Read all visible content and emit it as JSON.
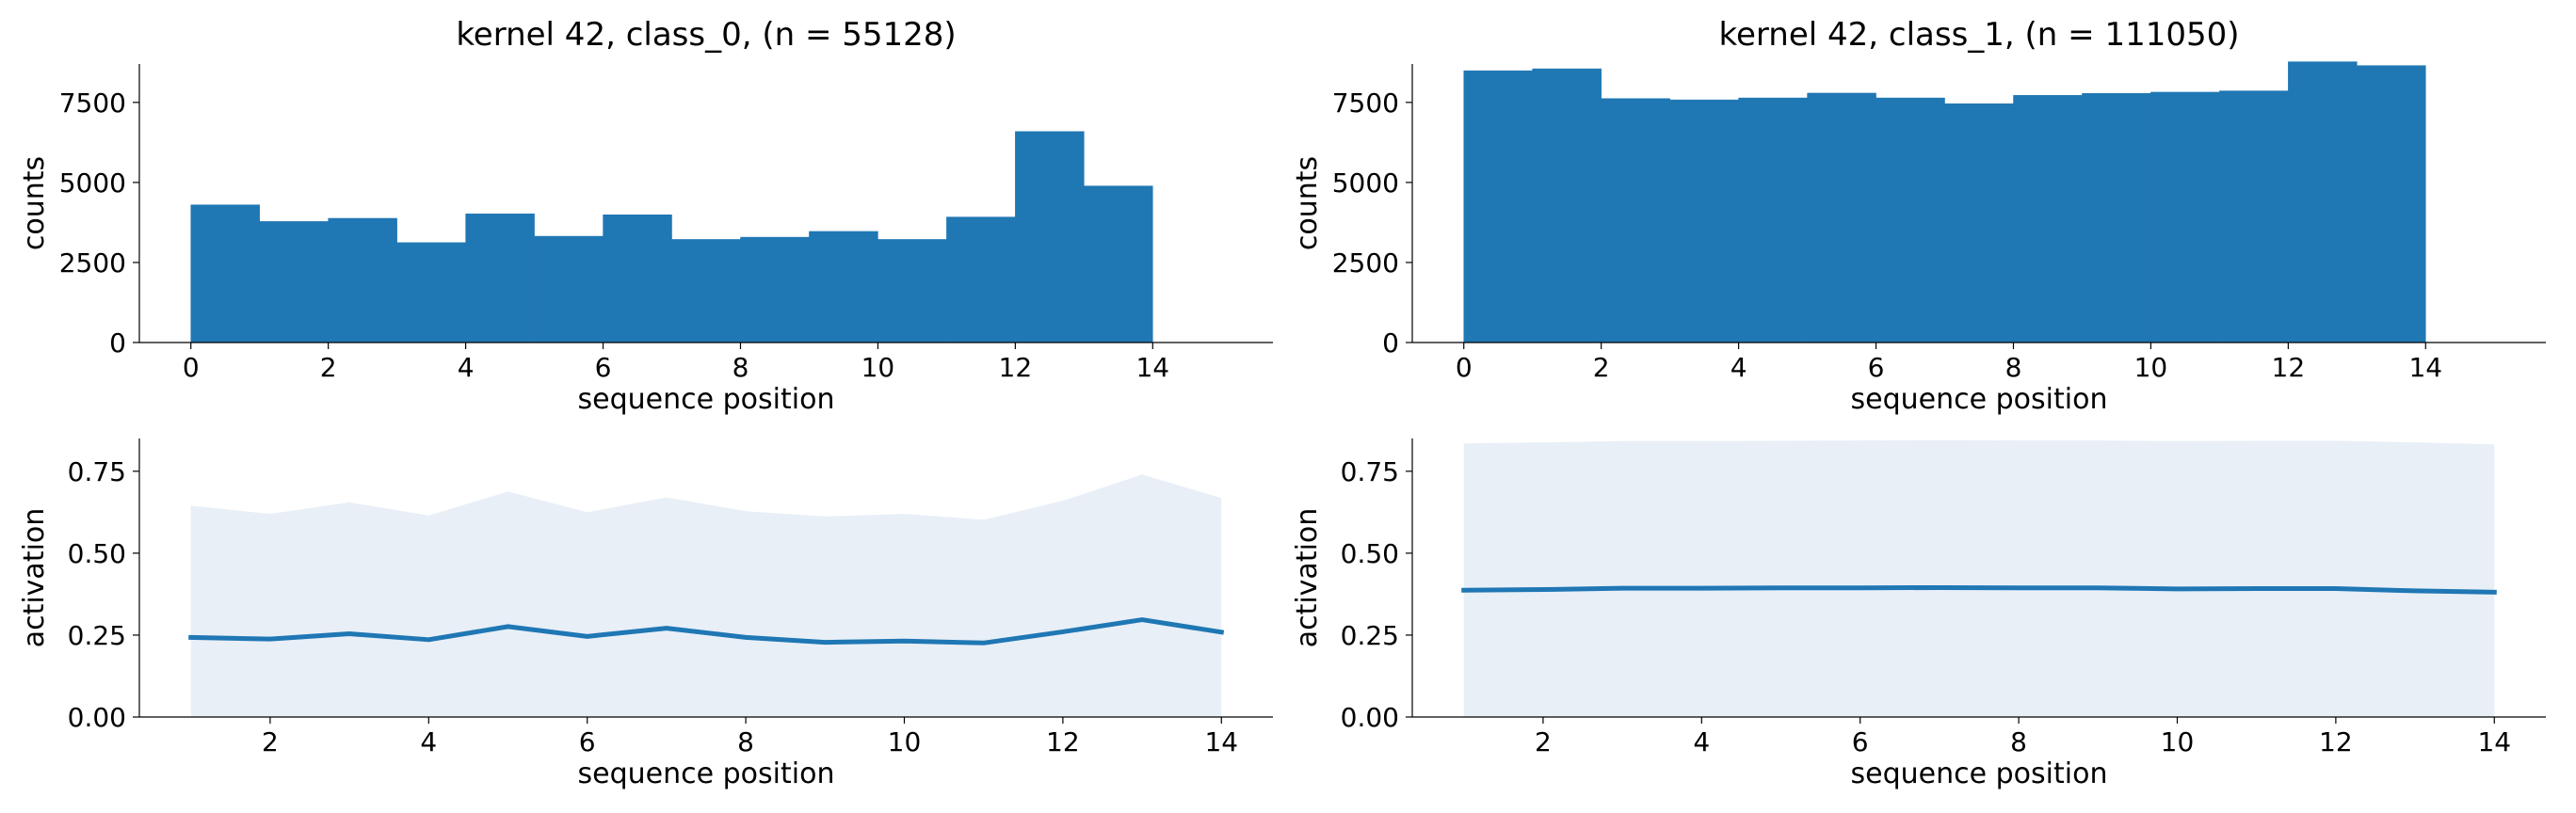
{
  "colors": {
    "series": "#1f77b4",
    "band": "#e8eff7",
    "axis": "#000000"
  },
  "chart_data": [
    {
      "type": "bar",
      "panel": "top-left",
      "title": "kernel 42, class_0, (n = 55128)",
      "xlabel": "sequence position",
      "ylabel": "counts",
      "xlim": [
        -0.75,
        15.75
      ],
      "ylim": [
        0,
        8700
      ],
      "xticks": [
        "0",
        "2",
        "4",
        "6",
        "8",
        "10",
        "12",
        "14"
      ],
      "yticks": [
        "0",
        "2500",
        "5000",
        "7500"
      ],
      "bin_edges": [
        0,
        1,
        2,
        3,
        4,
        5,
        6,
        7,
        8,
        9,
        10,
        11,
        12,
        13,
        14
      ],
      "values": [
        4300,
        3780,
        3880,
        3120,
        4020,
        3320,
        3990,
        3220,
        3290,
        3470,
        3220,
        3920,
        6590,
        4890
      ]
    },
    {
      "type": "bar",
      "panel": "top-right",
      "title": "kernel 42, class_1, (n = 111050)",
      "xlabel": "sequence position",
      "ylabel": "counts",
      "xlim": [
        -0.75,
        15.75
      ],
      "ylim": [
        0,
        8700
      ],
      "xticks": [
        "0",
        "2",
        "4",
        "6",
        "8",
        "10",
        "12",
        "14"
      ],
      "yticks": [
        "0",
        "2500",
        "5000",
        "7500"
      ],
      "bin_edges": [
        0,
        1,
        2,
        3,
        4,
        5,
        6,
        7,
        8,
        9,
        10,
        11,
        12,
        13,
        14
      ],
      "values": [
        8490,
        8550,
        7620,
        7580,
        7640,
        7790,
        7640,
        7460,
        7720,
        7780,
        7820,
        7860,
        8770,
        8650
      ]
    },
    {
      "type": "line",
      "panel": "bottom-left",
      "title": "",
      "xlabel": "sequence position",
      "ylabel": "activation",
      "xlim": [
        0.35,
        14.65
      ],
      "ylim": [
        0,
        0.85
      ],
      "xticks": [
        "2",
        "4",
        "6",
        "8",
        "10",
        "12",
        "14"
      ],
      "yticks": [
        "0.00",
        "0.25",
        "0.50",
        "0.75"
      ],
      "x": [
        1,
        2,
        3,
        4,
        5,
        6,
        7,
        8,
        9,
        10,
        11,
        12,
        13,
        14
      ],
      "mean": [
        0.243,
        0.238,
        0.254,
        0.236,
        0.276,
        0.246,
        0.271,
        0.243,
        0.228,
        0.232,
        0.226,
        0.26,
        0.297,
        0.259
      ],
      "band_upper": [
        0.645,
        0.62,
        0.655,
        0.615,
        0.688,
        0.625,
        0.67,
        0.628,
        0.612,
        0.62,
        0.602,
        0.66,
        0.74,
        0.668
      ],
      "band_lower": [
        0,
        0,
        0,
        0,
        0,
        0,
        0,
        0,
        0,
        0,
        0,
        0,
        0,
        0
      ]
    },
    {
      "type": "line",
      "panel": "bottom-right",
      "title": "",
      "xlabel": "sequence position",
      "ylabel": "activation",
      "xlim": [
        0.35,
        14.65
      ],
      "ylim": [
        0,
        0.85
      ],
      "xticks": [
        "2",
        "4",
        "6",
        "8",
        "10",
        "12",
        "14"
      ],
      "yticks": [
        "0.00",
        "0.25",
        "0.50",
        "0.75"
      ],
      "x": [
        1,
        2,
        3,
        4,
        5,
        6,
        7,
        8,
        9,
        10,
        11,
        12,
        13,
        14
      ],
      "mean": [
        0.387,
        0.389,
        0.393,
        0.393,
        0.394,
        0.394,
        0.395,
        0.394,
        0.394,
        0.391,
        0.392,
        0.392,
        0.385,
        0.381
      ],
      "band_upper": [
        0.835,
        0.838,
        0.842,
        0.842,
        0.843,
        0.844,
        0.845,
        0.844,
        0.844,
        0.842,
        0.843,
        0.843,
        0.838,
        0.832
      ],
      "band_lower": [
        0,
        0,
        0,
        0,
        0,
        0,
        0,
        0,
        0,
        0,
        0,
        0,
        0,
        0
      ]
    }
  ]
}
